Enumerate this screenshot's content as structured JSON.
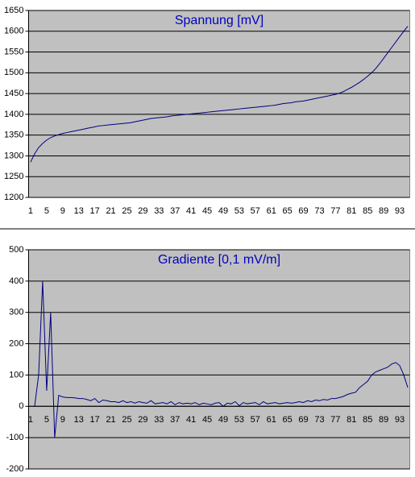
{
  "chart_data": [
    {
      "type": "line",
      "title": "Spannung [mV]",
      "color": "#000080",
      "grid": true,
      "ylim": [
        1200,
        1650
      ],
      "yticks": [
        1200,
        1250,
        1300,
        1350,
        1400,
        1450,
        1500,
        1550,
        1600,
        1650
      ],
      "categories": [
        "1",
        null,
        null,
        null,
        "5",
        null,
        null,
        null,
        "9",
        null,
        null,
        null,
        "13",
        null,
        null,
        null,
        "17",
        null,
        null,
        null,
        "21",
        null,
        null,
        null,
        "25",
        null,
        null,
        null,
        "29",
        null,
        null,
        null,
        "33",
        null,
        null,
        null,
        "37",
        null,
        null,
        null,
        "41",
        null,
        null,
        null,
        "45",
        null,
        null,
        null,
        "49",
        null,
        null,
        null,
        "53",
        null,
        null,
        null,
        "57",
        null,
        null,
        null,
        "61",
        null,
        null,
        null,
        "65",
        null,
        null,
        null,
        "69",
        null,
        null,
        null,
        "73",
        null,
        null,
        null,
        "77",
        null,
        null,
        null,
        "81",
        null,
        null,
        null,
        "85",
        null,
        null,
        null,
        "89",
        null,
        null,
        null,
        "93",
        null,
        null
      ],
      "values": [
        1285,
        1305,
        1320,
        1330,
        1338,
        1344,
        1348,
        1351,
        1354,
        1356,
        1358,
        1360,
        1362,
        1364,
        1366,
        1368,
        1370,
        1372,
        1373,
        1374,
        1375,
        1376,
        1377,
        1378,
        1379,
        1380,
        1382,
        1384,
        1386,
        1388,
        1390,
        1391,
        1392,
        1393,
        1394,
        1396,
        1397,
        1398,
        1399,
        1400,
        1401,
        1402,
        1403,
        1404,
        1405,
        1406,
        1407,
        1408,
        1409,
        1410,
        1411,
        1412,
        1413,
        1414,
        1415,
        1416,
        1417,
        1418,
        1419,
        1420,
        1421,
        1422,
        1424,
        1426,
        1427,
        1428,
        1430,
        1431,
        1432,
        1434,
        1436,
        1438,
        1440,
        1442,
        1444,
        1446,
        1448,
        1451,
        1455,
        1460,
        1465,
        1471,
        1477,
        1484,
        1492,
        1500,
        1510,
        1522,
        1535,
        1548,
        1561,
        1574,
        1587,
        1600,
        1612
      ]
    },
    {
      "type": "line",
      "title": "Gradiente [0,1 mV/m]",
      "color": "#000080",
      "grid": true,
      "ylim": [
        -200,
        500
      ],
      "yticks": [
        -200,
        -100,
        0,
        100,
        200,
        300,
        400,
        500
      ],
      "categories": [
        "1",
        null,
        null,
        null,
        "5",
        null,
        null,
        null,
        "9",
        null,
        null,
        null,
        "13",
        null,
        null,
        null,
        "17",
        null,
        null,
        null,
        "21",
        null,
        null,
        null,
        "25",
        null,
        null,
        null,
        "29",
        null,
        null,
        null,
        "33",
        null,
        null,
        null,
        "37",
        null,
        null,
        null,
        "41",
        null,
        null,
        null,
        "45",
        null,
        null,
        null,
        "49",
        null,
        null,
        null,
        "53",
        null,
        null,
        null,
        "57",
        null,
        null,
        null,
        "61",
        null,
        null,
        null,
        "65",
        null,
        null,
        null,
        "69",
        null,
        null,
        null,
        "73",
        null,
        null,
        null,
        "77",
        null,
        null,
        null,
        "81",
        null,
        null,
        null,
        "85",
        null,
        null,
        null,
        "89",
        null,
        null,
        null,
        "93",
        null,
        null
      ],
      "values": [
        null,
        0,
        100,
        400,
        50,
        300,
        -100,
        35,
        30,
        28,
        28,
        27,
        25,
        25,
        22,
        18,
        25,
        12,
        20,
        18,
        15,
        15,
        12,
        18,
        12,
        15,
        10,
        15,
        12,
        10,
        18,
        8,
        10,
        12,
        8,
        15,
        5,
        12,
        8,
        10,
        8,
        12,
        5,
        10,
        8,
        5,
        10,
        12,
        0,
        10,
        8,
        15,
        2,
        12,
        8,
        10,
        12,
        5,
        15,
        8,
        10,
        12,
        8,
        10,
        12,
        10,
        12,
        15,
        12,
        18,
        15,
        20,
        18,
        22,
        20,
        25,
        25,
        28,
        32,
        38,
        42,
        45,
        60,
        70,
        80,
        100,
        110,
        115,
        120,
        125,
        135,
        140,
        130,
        100,
        60
      ]
    }
  ]
}
